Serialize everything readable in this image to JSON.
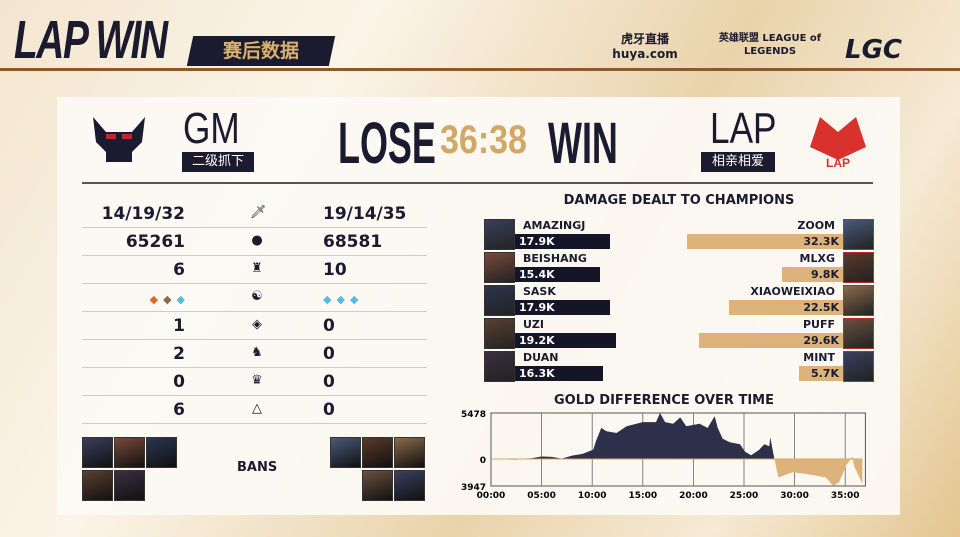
{
  "header": {
    "title": "LAP WIN",
    "subtitle": "赛后数据",
    "logos": [
      "虎牙直播 huya.com",
      "英雄联盟 LEAGUE of LEGENDS",
      "LGC"
    ]
  },
  "match": {
    "left_team": "GM",
    "left_tag": "二级抓下",
    "left_result": "LOSE",
    "score": "36:38",
    "right_result": "WIN",
    "right_team": "LAP",
    "right_tag": "相亲相爱",
    "left_color": "#1a1b2e",
    "right_color": "#d9312b"
  },
  "stats": [
    {
      "icon": "sword-icon",
      "left": "14/19/32",
      "right": "19/14/35"
    },
    {
      "icon": "gold-icon",
      "left": "65261",
      "right": "68581"
    },
    {
      "icon": "tower-icon",
      "left": "6",
      "right": "10"
    },
    {
      "icon": "dragon-icon",
      "left": "",
      "right": "",
      "left_drakes": [
        "infernal",
        "mountain",
        "ocean"
      ],
      "right_drakes": [
        "ocean",
        "ocean",
        "ocean"
      ]
    },
    {
      "icon": "herald-icon",
      "left": "1",
      "right": "0"
    },
    {
      "icon": "baron-icon",
      "left": "2",
      "right": "0"
    },
    {
      "icon": "elder-icon",
      "left": "0",
      "right": "0"
    },
    {
      "icon": "inhibitor-icon",
      "left": "6",
      "right": "0"
    }
  ],
  "bans": {
    "label": "BANS"
  },
  "damage": {
    "title": "DAMAGE DEALT TO CHAMPIONS",
    "left": [
      {
        "name": "AMAZINGJ",
        "value": "17.9K",
        "k": 17.9
      },
      {
        "name": "BEISHANG",
        "value": "15.4K",
        "k": 15.4
      },
      {
        "name": "SASK",
        "value": "17.9K",
        "k": 17.9
      },
      {
        "name": "UZI",
        "value": "19.2K",
        "k": 19.2
      },
      {
        "name": "DUAN",
        "value": "16.3K",
        "k": 16.3
      }
    ],
    "right": [
      {
        "name": "ZOOM",
        "value": "32.3K",
        "k": 32.3
      },
      {
        "name": "MLXG",
        "value": "9.8K",
        "k": 9.8
      },
      {
        "name": "XIAOWEIXIAO",
        "value": "22.5K",
        "k": 22.5
      },
      {
        "name": "PUFF",
        "value": "29.6K",
        "k": 29.6
      },
      {
        "name": "MINT",
        "value": "5.7K",
        "k": 5.7
      }
    ]
  },
  "chart_data": {
    "type": "area",
    "title": "GOLD DIFFERENCE OVER TIME",
    "ylim": [
      -3947,
      5478
    ],
    "ytick_labels": [
      "5478",
      "0",
      "3947"
    ],
    "xtick_labels": [
      "00:00",
      "05:00",
      "10:00",
      "15:00",
      "20:00",
      "25:00",
      "30:00",
      "35:00"
    ],
    "grid": true,
    "positive_color": "#2e2f4a",
    "negative_color": "#deb37b",
    "x_minutes": [
      0,
      1.5,
      2,
      2.5,
      3,
      4,
      5,
      6,
      7,
      8,
      9,
      10.1,
      10.4,
      10.9,
      11.4,
      12.4,
      13.4,
      15,
      16.3,
      16.7,
      17.2,
      18,
      18.7,
      19.3,
      20.6,
      21.4,
      22.1,
      22.4,
      22.9,
      23.6,
      24.6,
      25.1,
      25.7,
      26.5,
      27,
      27.5,
      27.6,
      27.9,
      28,
      28.4,
      29.8,
      31.5,
      33.1,
      33.8,
      34.4,
      35.1,
      35.7,
      35.9,
      36.7
    ],
    "y": [
      0,
      -50,
      -100,
      -150,
      50,
      100,
      300,
      250,
      50,
      400,
      600,
      1100,
      2200,
      3700,
      3300,
      3100,
      3900,
      4400,
      4400,
      5478,
      4400,
      4200,
      4950,
      3900,
      4200,
      3700,
      5100,
      3700,
      2400,
      2000,
      1750,
      880,
      440,
      1100,
      1750,
      1530,
      2600,
      660,
      0,
      -2700,
      -1950,
      -2270,
      -2700,
      -3947,
      -3400,
      -900,
      200,
      -1130,
      -3600
    ]
  }
}
